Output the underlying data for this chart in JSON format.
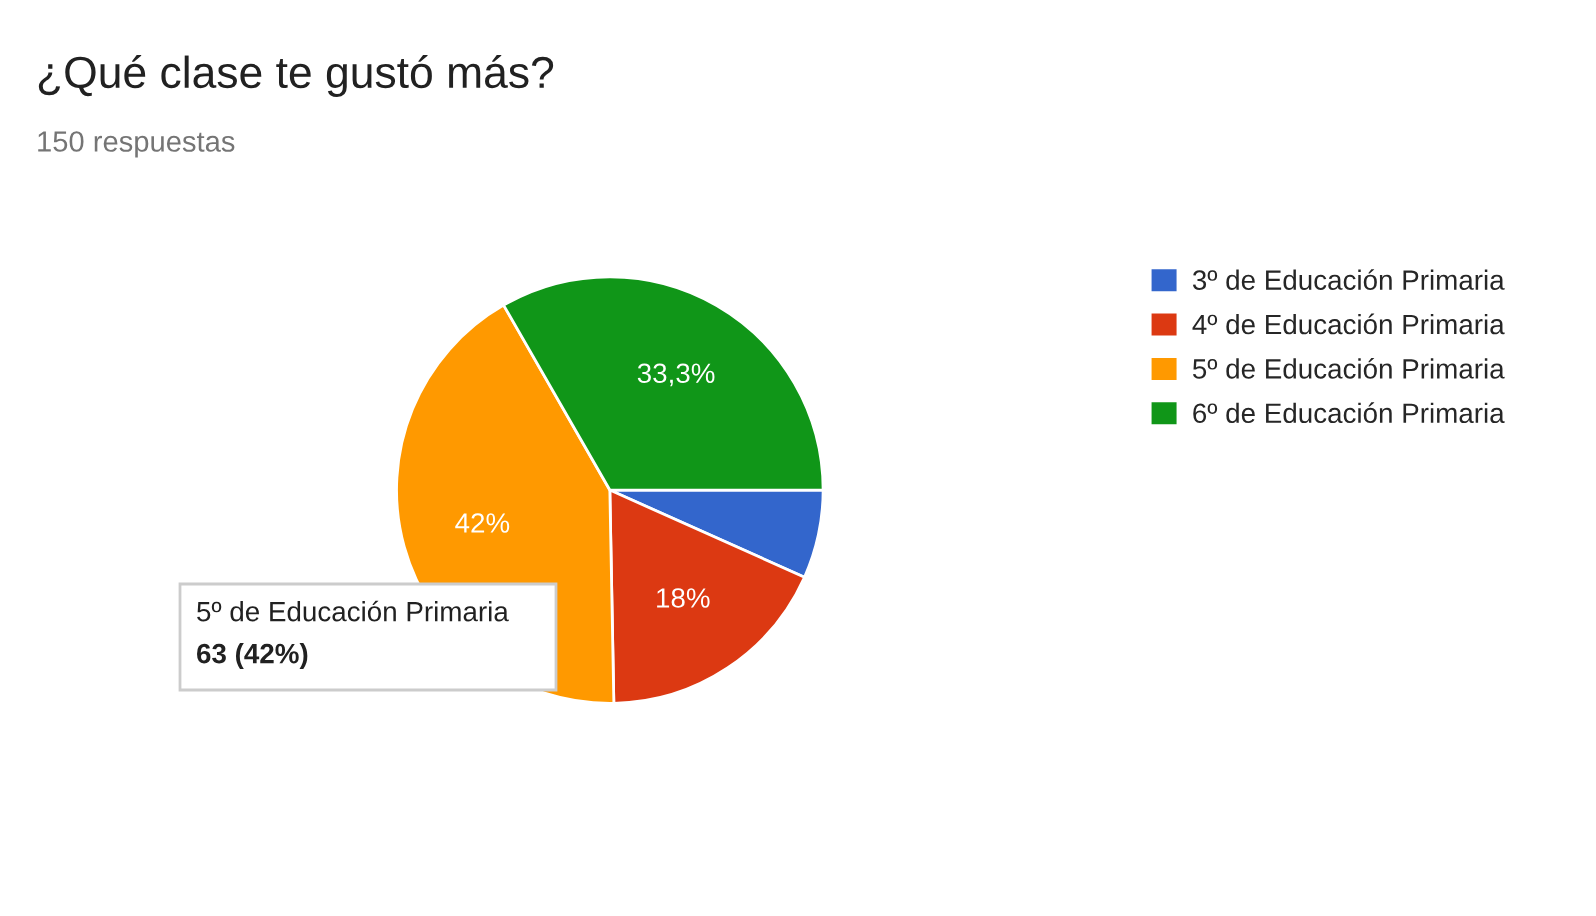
{
  "chart_data": {
    "type": "pie",
    "title": "¿Qué clase te gustó más?",
    "subtitle": "150 respuestas",
    "categories": [
      "3º de Educación Primaria",
      "4º de Educación Primaria",
      "5º de Educación Primaria",
      "6º de Educación Primaria"
    ],
    "values": [
      6.7,
      18,
      42,
      33.3
    ],
    "colors": [
      "#3366cc",
      "#dc3912",
      "#ff9900",
      "#109618"
    ],
    "value_labels": [
      null,
      "18%",
      "42%",
      "33,3%"
    ],
    "annotations": [
      "5º de Educación Primaria",
      "63 (42%)"
    ],
    "legend": "right"
  }
}
